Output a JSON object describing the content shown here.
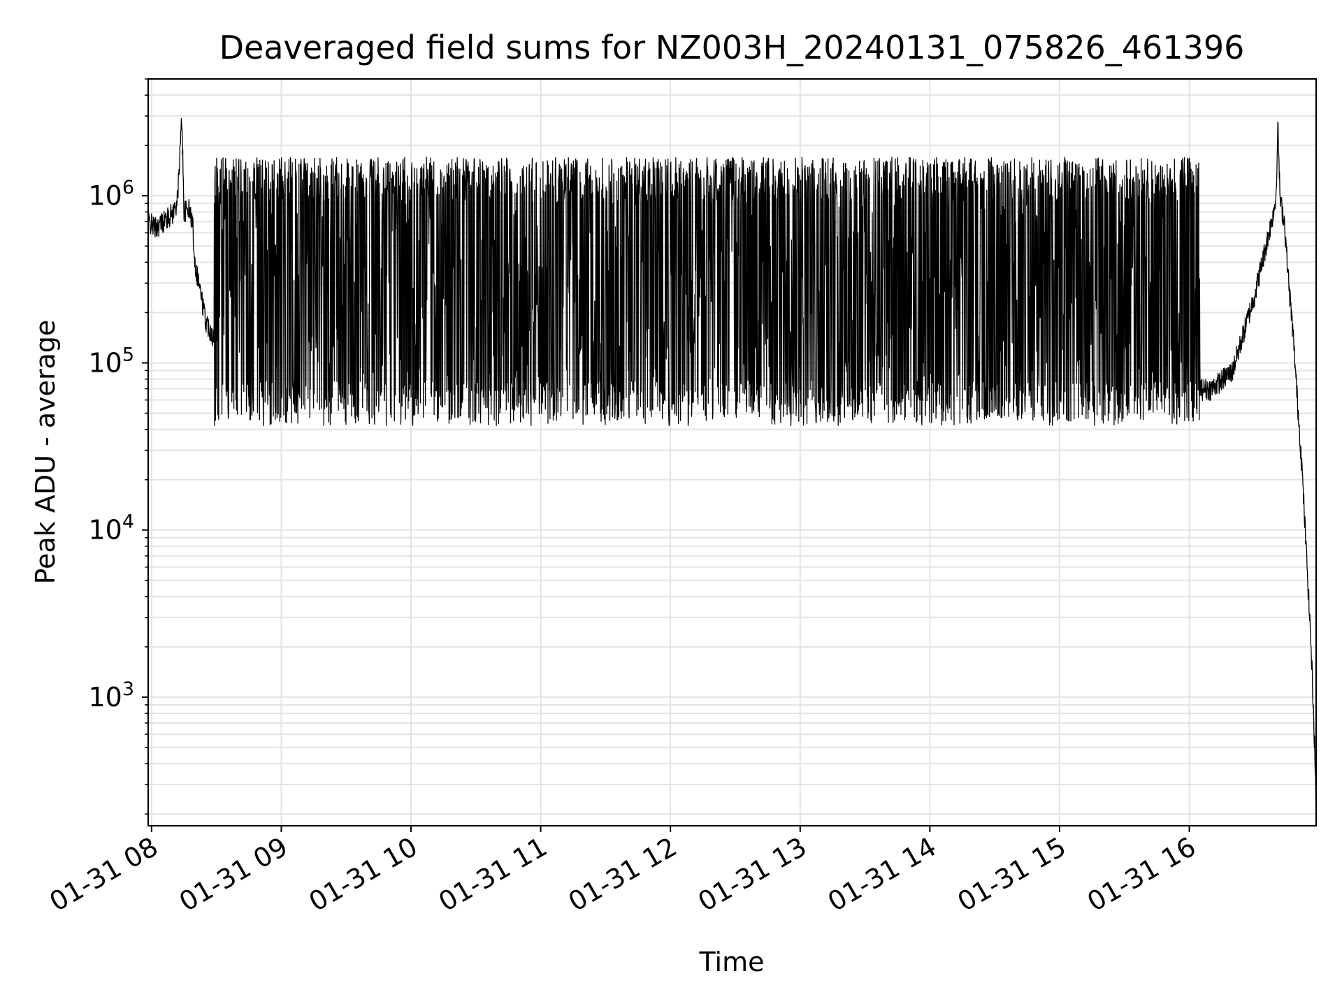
{
  "chart_data": {
    "type": "line",
    "title": "Deaveraged field sums for NZ003H_20240131_075826_461396",
    "xlabel": "Time",
    "ylabel": "Peak ADU - average",
    "yscale": "log",
    "ylim": [
      170,
      5000000
    ],
    "xlim": [
      "2024-01-31T07:58:26",
      "2024-01-31T16:58:40"
    ],
    "grid": true,
    "line_color": "#000000",
    "grid_color": "#e3e3e3",
    "x_ticks": [
      {
        "value": "2024-01-31T08:00:00",
        "label": "01-31 08"
      },
      {
        "value": "2024-01-31T09:00:00",
        "label": "01-31 09"
      },
      {
        "value": "2024-01-31T10:00:00",
        "label": "01-31 10"
      },
      {
        "value": "2024-01-31T11:00:00",
        "label": "01-31 11"
      },
      {
        "value": "2024-01-31T12:00:00",
        "label": "01-31 12"
      },
      {
        "value": "2024-01-31T13:00:00",
        "label": "01-31 13"
      },
      {
        "value": "2024-01-31T14:00:00",
        "label": "01-31 14"
      },
      {
        "value": "2024-01-31T15:00:00",
        "label": "01-31 15"
      },
      {
        "value": "2024-01-31T16:00:00",
        "label": "01-31 16"
      }
    ],
    "y_ticks": [
      {
        "value": 1000,
        "base": "10",
        "exponent": "3"
      },
      {
        "value": 10000,
        "base": "10",
        "exponent": "4"
      },
      {
        "value": 100000,
        "base": "10",
        "exponent": "5"
      },
      {
        "value": 1000000,
        "base": "10",
        "exponent": "6"
      }
    ],
    "series": [
      {
        "x": [
          "2024-01-31T07:58:30",
          "2024-01-31T08:02:00",
          "2024-01-31T08:05:00",
          "2024-01-31T08:08:00",
          "2024-01-31T08:10:00",
          "2024-01-31T08:12:00",
          "2024-01-31T08:14:00",
          "2024-01-31T08:15:00",
          "2024-01-31T08:17:00",
          "2024-01-31T08:19:00",
          "2024-01-31T08:20:00",
          "2024-01-31T08:22:00",
          "2024-01-31T08:23:00",
          "2024-01-31T08:25:00",
          "2024-01-31T08:28:00",
          "2024-01-31T08:30:00",
          "2024-01-31T08:35:00",
          "2024-01-31T08:40:00",
          "2024-01-31T08:45:00",
          "2024-01-31T08:50:00",
          "2024-01-31T09:00:00",
          "2024-01-31T09:30:00",
          "2024-01-31T09:45:00",
          "2024-01-31T10:00:00",
          "2024-01-31T10:20:00",
          "2024-01-31T10:40:00",
          "2024-01-31T11:00:00",
          "2024-01-31T11:20:00",
          "2024-01-31T11:40:00",
          "2024-01-31T12:00:00",
          "2024-01-31T12:20:00",
          "2024-01-31T12:40:00",
          "2024-01-31T13:00:00",
          "2024-01-31T13:20:00",
          "2024-01-31T13:40:00",
          "2024-01-31T14:00:00",
          "2024-01-31T14:20:00",
          "2024-01-31T14:40:00",
          "2024-01-31T15:00:00",
          "2024-01-31T15:15:00",
          "2024-01-31T15:30:00",
          "2024-01-31T15:45:00",
          "2024-01-31T16:00:00",
          "2024-01-31T16:10:00",
          "2024-01-31T16:20:00",
          "2024-01-31T16:30:00",
          "2024-01-31T16:38:00",
          "2024-01-31T16:40:00",
          "2024-01-31T16:41:00",
          "2024-01-31T16:42:00",
          "2024-01-31T16:44:00",
          "2024-01-31T16:46:00",
          "2024-01-31T16:48:00",
          "2024-01-31T16:50:00",
          "2024-01-31T16:52:00",
          "2024-01-31T16:54:00",
          "2024-01-31T16:56:00",
          "2024-01-31T16:57:00",
          "2024-01-31T16:58:00",
          "2024-01-31T16:58:30"
        ],
        "base": [
          700000,
          650000,
          700000,
          750000,
          800000,
          950000,
          3000000,
          800000,
          850000,
          700000,
          400000,
          300000,
          250000,
          180000,
          150000,
          120000,
          100000,
          100000,
          95000,
          90000,
          90000,
          85000,
          80000,
          90000,
          200000,
          350000,
          500000,
          500000,
          480000,
          450000,
          380000,
          280000,
          200000,
          150000,
          110000,
          90000,
          85000,
          80000,
          75000,
          80000,
          150000,
          200000,
          70000,
          70000,
          90000,
          250000,
          700000,
          950000,
          2600000,
          950000,
          700000,
          300000,
          150000,
          60000,
          25000,
          8000,
          2500,
          1200,
          500,
          260
        ],
        "spread": [
          0,
          0,
          0,
          0,
          0,
          0,
          0,
          0,
          0,
          0,
          0,
          0,
          0,
          0,
          0,
          1,
          1,
          1,
          1,
          1,
          1,
          1,
          1,
          1,
          1,
          1,
          1,
          1,
          1,
          1,
          1,
          1,
          1,
          1,
          1,
          1,
          1,
          1,
          1,
          1,
          1,
          1,
          1,
          0,
          0,
          0,
          0,
          0,
          0,
          0,
          0,
          0,
          0,
          0,
          0,
          0,
          0,
          0,
          0,
          0
        ],
        "range_min": 30000,
        "range_max": 1700000,
        "description_points": 4000
      }
    ]
  }
}
